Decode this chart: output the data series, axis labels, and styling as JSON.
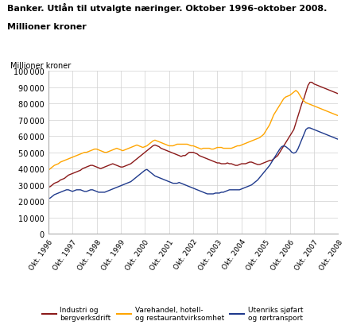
{
  "title1": "Banker. Utlån til utvalgte næringer. Oktober 1996-oktober 2008.",
  "title2": "Millioner kroner",
  "ylabel": "Millioner kroner",
  "ylim": [
    0,
    100000
  ],
  "yticks": [
    0,
    10000,
    20000,
    30000,
    40000,
    50000,
    60000,
    70000,
    80000,
    90000,
    100000
  ],
  "background_color": "#ffffff",
  "grid_color": "#d0d0d0",
  "line_colors": [
    "#8B1A1A",
    "#FFA500",
    "#1F3A8C"
  ],
  "legend_labels": [
    "Industri og\nbergverksdrift",
    "Varehandel, hotell-\nog restaurantvirksomhet",
    "Utenriks sjøfart\nog rørtransport"
  ],
  "n_months": 145,
  "industri": [
    28500,
    29000,
    30000,
    31000,
    31500,
    32000,
    33000,
    33500,
    34000,
    35000,
    36000,
    36500,
    37000,
    37500,
    38000,
    38500,
    39000,
    40000,
    40500,
    41000,
    41500,
    42000,
    42000,
    41500,
    41000,
    40500,
    40000,
    40500,
    41000,
    41500,
    42000,
    42500,
    43000,
    42500,
    42000,
    41500,
    41000,
    41000,
    41500,
    42000,
    42500,
    43000,
    44000,
    45000,
    46000,
    47000,
    48000,
    49000,
    50000,
    51000,
    52000,
    53000,
    54000,
    54500,
    54000,
    53500,
    52500,
    52000,
    51500,
    51000,
    50500,
    50000,
    49500,
    49000,
    48500,
    48000,
    47500,
    48000,
    48000,
    49000,
    50000,
    50000,
    50000,
    49500,
    49000,
    48000,
    47500,
    47000,
    46500,
    46000,
    45500,
    45000,
    44500,
    44000,
    43500,
    43500,
    43000,
    43000,
    43000,
    43500,
    43000,
    43000,
    42500,
    42000,
    42000,
    42500,
    43000,
    43000,
    43000,
    43500,
    44000,
    44000,
    43500,
    43000,
    42500,
    42500,
    43000,
    43500,
    44000,
    44500,
    45000,
    45000,
    46000,
    47000,
    48000,
    50000,
    52000,
    54000,
    56000,
    58000,
    60000,
    62000,
    64000,
    68000,
    72000,
    76000,
    80000,
    83000,
    87000,
    91000,
    93000,
    93000,
    92000,
    91500,
    91000,
    90500,
    90000,
    89500,
    89000,
    88500,
    88000,
    87500,
    87000,
    86500,
    86000
  ],
  "varehandel": [
    39000,
    40000,
    41000,
    42000,
    42500,
    43000,
    44000,
    44500,
    45000,
    45500,
    46000,
    46500,
    47000,
    47500,
    48000,
    48500,
    49000,
    49500,
    50000,
    50000,
    50500,
    51000,
    51500,
    52000,
    52000,
    51500,
    51000,
    50500,
    50000,
    50000,
    50500,
    51000,
    51500,
    52000,
    52500,
    52000,
    51500,
    51000,
    51500,
    52000,
    52500,
    53000,
    53500,
    54000,
    54500,
    54000,
    53500,
    53000,
    53500,
    54000,
    55000,
    56000,
    57000,
    57500,
    57000,
    56500,
    56000,
    55500,
    55000,
    54500,
    54000,
    54000,
    54000,
    54500,
    55000,
    55000,
    55000,
    55000,
    55000,
    55000,
    54500,
    54000,
    54000,
    53500,
    53000,
    52500,
    52000,
    52500,
    52500,
    52500,
    52500,
    52000,
    52000,
    52500,
    53000,
    53000,
    53000,
    52500,
    52500,
    52500,
    52500,
    52500,
    53000,
    53500,
    54000,
    54000,
    54500,
    55000,
    55500,
    56000,
    56500,
    57000,
    57500,
    58000,
    58500,
    59000,
    60000,
    61000,
    63000,
    65000,
    67000,
    70000,
    73000,
    75000,
    77000,
    79000,
    81000,
    83000,
    84000,
    84500,
    85000,
    86000,
    87000,
    88000,
    87000,
    85000,
    83000,
    81500,
    80500,
    80000,
    79500,
    79000,
    78500,
    78000,
    77500,
    77000,
    76500,
    76000,
    75500,
    75000,
    74500,
    74000,
    73500,
    73000,
    72500
  ],
  "sjoefart": [
    21500,
    22000,
    23000,
    24000,
    24500,
    25000,
    25500,
    26000,
    26500,
    27000,
    27000,
    26500,
    26000,
    26500,
    27000,
    27000,
    27000,
    26500,
    26000,
    26000,
    26500,
    27000,
    27000,
    26500,
    26000,
    25500,
    25500,
    25500,
    25500,
    26000,
    26500,
    27000,
    27500,
    28000,
    28500,
    29000,
    29500,
    30000,
    30500,
    31000,
    31500,
    32000,
    33000,
    34000,
    35000,
    36000,
    37000,
    38000,
    39000,
    39500,
    38500,
    37500,
    36500,
    35500,
    35000,
    34500,
    34000,
    33500,
    33000,
    32500,
    32000,
    31500,
    31000,
    31000,
    31000,
    31500,
    31000,
    30500,
    30000,
    29500,
    29000,
    28500,
    28000,
    27500,
    27000,
    26500,
    26000,
    25500,
    25000,
    24500,
    24500,
    24500,
    24500,
    25000,
    25000,
    25000,
    25500,
    25500,
    26000,
    26500,
    27000,
    27000,
    27000,
    27000,
    27000,
    27000,
    27500,
    28000,
    28500,
    29000,
    29500,
    30000,
    31000,
    32000,
    33000,
    34500,
    36000,
    37500,
    39000,
    40500,
    42000,
    44000,
    46000,
    48000,
    50000,
    52000,
    53500,
    54000,
    53500,
    52500,
    51500,
    50000,
    49500,
    50000,
    52000,
    55000,
    58000,
    61000,
    64000,
    65000,
    65000,
    64500,
    64000,
    63500,
    63000,
    62500,
    62000,
    61500,
    61000,
    60500,
    60000,
    59500,
    59000,
    58500,
    58000
  ]
}
